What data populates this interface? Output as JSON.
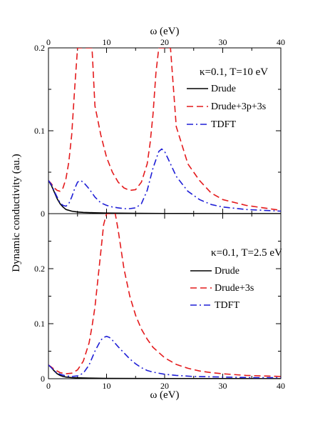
{
  "chart_data": [
    {
      "type": "line",
      "panel": "top",
      "annotation": "κ=0.1, T=10 eV",
      "xlabel": "ω (eV)",
      "ylabel": "Dynamic conductivity (au.)",
      "xlim": [
        0,
        40
      ],
      "ylim": [
        0,
        0.2
      ],
      "x_ticks": [
        "0",
        "10",
        "20",
        "30",
        "40"
      ],
      "y_ticks": [
        "0",
        "0.1",
        "0.2"
      ],
      "legend_position": "top-right",
      "grid": false,
      "series": [
        {
          "name": "Drude",
          "color": "#000000",
          "dash": "solid",
          "x": [
            0,
            0.5,
            1,
            1.5,
            2,
            2.5,
            3,
            4,
            5,
            6,
            8,
            10,
            15,
            20,
            30,
            40
          ],
          "y": [
            0.04,
            0.034,
            0.026,
            0.018,
            0.012,
            0.008,
            0.005,
            0.003,
            0.002,
            0.0015,
            0.001,
            0.0007,
            0.0004,
            0.0002,
            0.0001,
            0.0001
          ]
        },
        {
          "name": "Drude+3p+3s",
          "color": "#e41a1c",
          "dash": "dashed",
          "x": [
            0,
            0.5,
            1,
            1.5,
            2,
            2.5,
            3,
            3.5,
            4,
            4.5,
            5,
            6.5,
            7.5,
            8,
            9,
            10,
            11,
            12,
            13,
            14,
            15,
            16,
            17,
            17.5,
            18,
            18.5,
            19,
            19.5,
            21,
            22,
            24,
            26,
            28,
            30,
            34,
            40
          ],
          "y": [
            0.04,
            0.036,
            0.031,
            0.028,
            0.027,
            0.031,
            0.042,
            0.062,
            0.095,
            0.15,
            0.2,
            0.2,
            0.2,
            0.13,
            0.095,
            0.068,
            0.05,
            0.038,
            0.031,
            0.028,
            0.029,
            0.038,
            0.06,
            0.085,
            0.12,
            0.17,
            0.2,
            0.2,
            0.2,
            0.105,
            0.06,
            0.04,
            0.025,
            0.017,
            0.01,
            0.004
          ]
        },
        {
          "name": "TDFT",
          "color": "#1f1fd6",
          "dash": "dashdot",
          "x": [
            0,
            0.5,
            1,
            1.5,
            2,
            2.5,
            3,
            3.5,
            4,
            4.5,
            5,
            5.5,
            6,
            7,
            8,
            9,
            10,
            11,
            12,
            13,
            14,
            15,
            16,
            17,
            18,
            19,
            19.5,
            20,
            21,
            22,
            24,
            26,
            28,
            30,
            34,
            40
          ],
          "y": [
            0.04,
            0.035,
            0.027,
            0.02,
            0.013,
            0.01,
            0.009,
            0.012,
            0.02,
            0.03,
            0.038,
            0.04,
            0.038,
            0.03,
            0.02,
            0.013,
            0.01,
            0.008,
            0.007,
            0.006,
            0.006,
            0.007,
            0.012,
            0.028,
            0.055,
            0.075,
            0.078,
            0.075,
            0.06,
            0.045,
            0.027,
            0.017,
            0.011,
            0.008,
            0.005,
            0.003
          ]
        }
      ]
    },
    {
      "type": "line",
      "panel": "bottom",
      "annotation": "κ=0.1, T=2.5 eV",
      "xlabel": "ω (eV)",
      "ylabel": "Dynamic conductivity (au.)",
      "xlim": [
        0,
        40
      ],
      "ylim": [
        0,
        0.3
      ],
      "x_ticks": [
        "0",
        "10",
        "20",
        "30",
        "40"
      ],
      "y_ticks": [
        "0",
        "0.1",
        "0.2"
      ],
      "legend_position": "right",
      "grid": false,
      "series": [
        {
          "name": "Drude",
          "color": "#000000",
          "dash": "solid",
          "x": [
            0,
            0.5,
            1,
            1.5,
            2,
            2.5,
            3,
            4,
            5,
            7,
            10,
            15,
            20,
            30,
            40
          ],
          "y": [
            0.025,
            0.02,
            0.014,
            0.009,
            0.006,
            0.004,
            0.003,
            0.002,
            0.0015,
            0.001,
            0.0007,
            0.0004,
            0.0003,
            0.0002,
            0.0001
          ]
        },
        {
          "name": "Drude+3s",
          "color": "#e41a1c",
          "dash": "dashed",
          "x": [
            0,
            0.5,
            1,
            2,
            3,
            4,
            5,
            6,
            7,
            7.5,
            8,
            8.5,
            9,
            9.5,
            10,
            10.5,
            11,
            11.5,
            12,
            13,
            14,
            15,
            16,
            17,
            18,
            20,
            22,
            24,
            26,
            28,
            30,
            34,
            40
          ],
          "y": [
            0.025,
            0.021,
            0.017,
            0.011,
            0.009,
            0.01,
            0.016,
            0.032,
            0.065,
            0.095,
            0.13,
            0.18,
            0.23,
            0.28,
            0.3,
            0.3,
            0.3,
            0.3,
            0.27,
            0.2,
            0.15,
            0.115,
            0.09,
            0.072,
            0.057,
            0.038,
            0.026,
            0.019,
            0.014,
            0.011,
            0.009,
            0.006,
            0.004
          ]
        },
        {
          "name": "TDFT",
          "color": "#1f1fd6",
          "dash": "dashdot",
          "x": [
            0,
            0.5,
            1,
            2,
            3,
            4,
            5,
            6,
            7,
            8,
            9,
            9.5,
            10,
            10.5,
            11,
            12,
            13,
            14,
            15,
            16,
            17,
            18,
            20,
            22,
            25,
            30,
            35,
            40
          ],
          "y": [
            0.025,
            0.02,
            0.014,
            0.008,
            0.005,
            0.004,
            0.005,
            0.01,
            0.025,
            0.05,
            0.07,
            0.075,
            0.077,
            0.075,
            0.07,
            0.058,
            0.047,
            0.036,
            0.027,
            0.02,
            0.015,
            0.012,
            0.008,
            0.006,
            0.004,
            0.003,
            0.002,
            0.002
          ]
        }
      ]
    }
  ]
}
